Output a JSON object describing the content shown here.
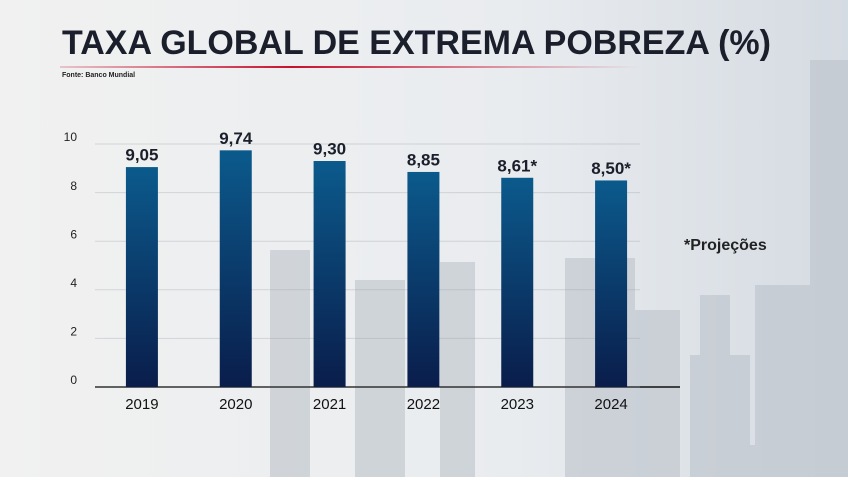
{
  "chart_data": {
    "type": "bar",
    "title": "TAXA GLOBAL DE EXTREMA POBREZA (%)",
    "source": "Fonte: Banco Mundial",
    "annotation": "*Projeções",
    "categories": [
      "2019",
      "2020",
      "2021",
      "2022",
      "2023",
      "2024"
    ],
    "values": [
      9.05,
      9.74,
      9.3,
      8.85,
      8.61,
      8.5
    ],
    "value_labels": [
      "9,05",
      "9,74",
      "9,30",
      "8,85",
      "8,61*",
      "8,50*"
    ],
    "color": "#0b4f80",
    "ylim": [
      0,
      10
    ],
    "yticks": [
      0,
      2,
      4,
      6,
      8,
      10
    ],
    "grid": true
  }
}
